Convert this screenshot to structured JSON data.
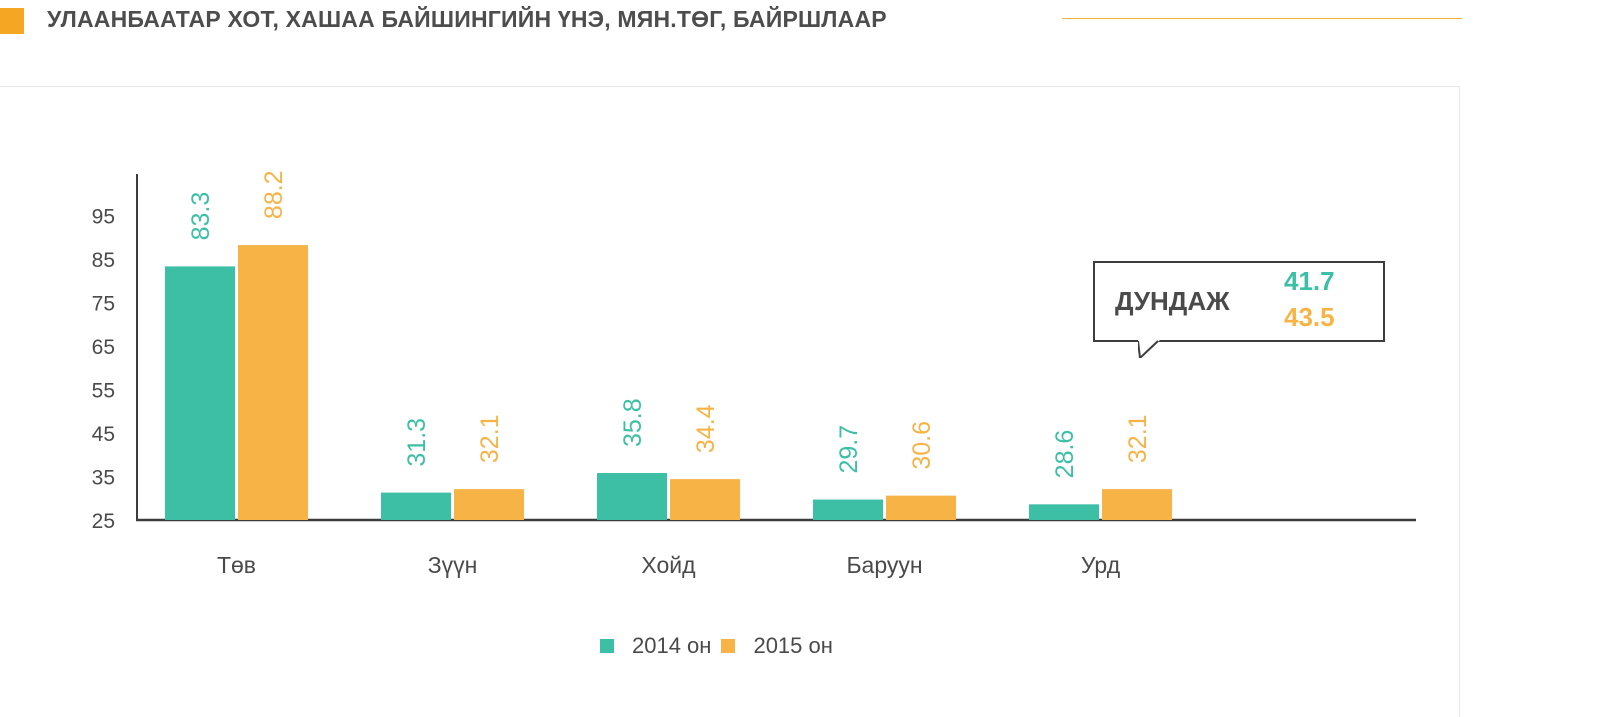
{
  "header": {
    "title": "УЛААНБААТАР ХОТ, ХАШАА БАЙШИНГИЙН ҮНЭ, МЯН.ТӨГ, БАЙРШЛААР"
  },
  "colors": {
    "series_2014": "#3dbfa6",
    "series_2015": "#f7b345",
    "accent": "#f5a623",
    "axis": "#3d3d3d",
    "tick_text": "#4a4a4a"
  },
  "average": {
    "label": "ДУНДАЖ",
    "value_2014": "41.7",
    "value_2015": "43.5"
  },
  "legend": {
    "items": [
      {
        "label": "2014 он",
        "color": "#3dbfa6"
      },
      {
        "label": "2015 он",
        "color": "#f7b345"
      }
    ]
  },
  "chart_data": {
    "type": "bar",
    "categories": [
      "Төв",
      "Зүүн",
      "Хойд",
      "Баруун",
      "Урд"
    ],
    "series": [
      {
        "name": "2014 он",
        "values": [
          83.3,
          31.3,
          35.8,
          29.7,
          28.6
        ]
      },
      {
        "name": "2015 он",
        "values": [
          88.2,
          32.1,
          34.4,
          30.6,
          32.1
        ]
      }
    ],
    "yticks": [
      25,
      35,
      45,
      55,
      65,
      75,
      85,
      95
    ],
    "ylim": [
      25,
      105
    ],
    "grid": false,
    "legend_position": "bottom-center"
  }
}
